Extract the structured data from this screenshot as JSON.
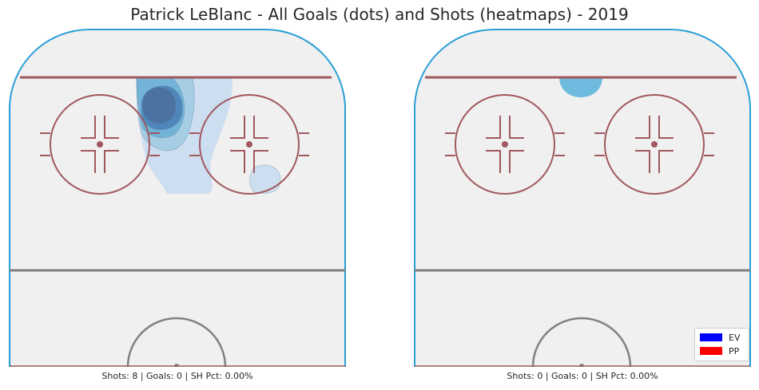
{
  "chart_data": {
    "type": "heatmap",
    "title": "Patrick LeBlanc - All Goals (dots) and Shots (heatmaps) - 2019",
    "panels": [
      {
        "caption": "Shots: 8 | Goals: 0 | SH Pct: 0.00%",
        "shots": 8,
        "goals": 0,
        "sh_pct": "0.00%",
        "density_levels": [
          {
            "level": 1,
            "color": "#c6dbef"
          },
          {
            "level": 2,
            "color": "#9ecae1"
          },
          {
            "level": 3,
            "color": "#6baed6"
          },
          {
            "level": 4,
            "color": "#4a7fb5"
          },
          {
            "level": 5,
            "color": "#4b6f9e"
          }
        ]
      },
      {
        "caption": "Shots: 0 | Goals: 0 | SH Pct: 0.00%",
        "shots": 0,
        "goals": 0,
        "sh_pct": "0.00%",
        "density_levels": [
          {
            "level": 1,
            "color": "#6fbadf"
          }
        ]
      }
    ],
    "legend": {
      "placement": "bottom-right",
      "entries": [
        {
          "label": "EV",
          "color": "#0000ff"
        },
        {
          "label": "PP",
          "color": "#ff0000"
        }
      ]
    },
    "colors": {
      "ice": "#f0f0f0",
      "boards": "#2a9fd6",
      "goal_line": "#a0585d",
      "faceoff": "#a0585d",
      "blue_line": "#7f7f7f",
      "center_circle": "#808080"
    }
  }
}
